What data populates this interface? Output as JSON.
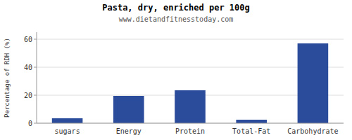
{
  "chart_data": {
    "type": "bar",
    "title": "Pasta, dry, enriched per 100g",
    "subtitle": "www.dietandfitnesstoday.com",
    "categories": [
      "sugars",
      "Energy",
      "Protein",
      "Total-Fat",
      "Carbohydrate"
    ],
    "values": [
      3.5,
      19.5,
      23.5,
      2.5,
      57.0
    ],
    "color": "#2b4b9b",
    "ylabel": "Percentage of RDH (%)",
    "ylim": [
      0,
      65
    ],
    "yticks": [
      0,
      20,
      40,
      60
    ],
    "grid": true
  }
}
